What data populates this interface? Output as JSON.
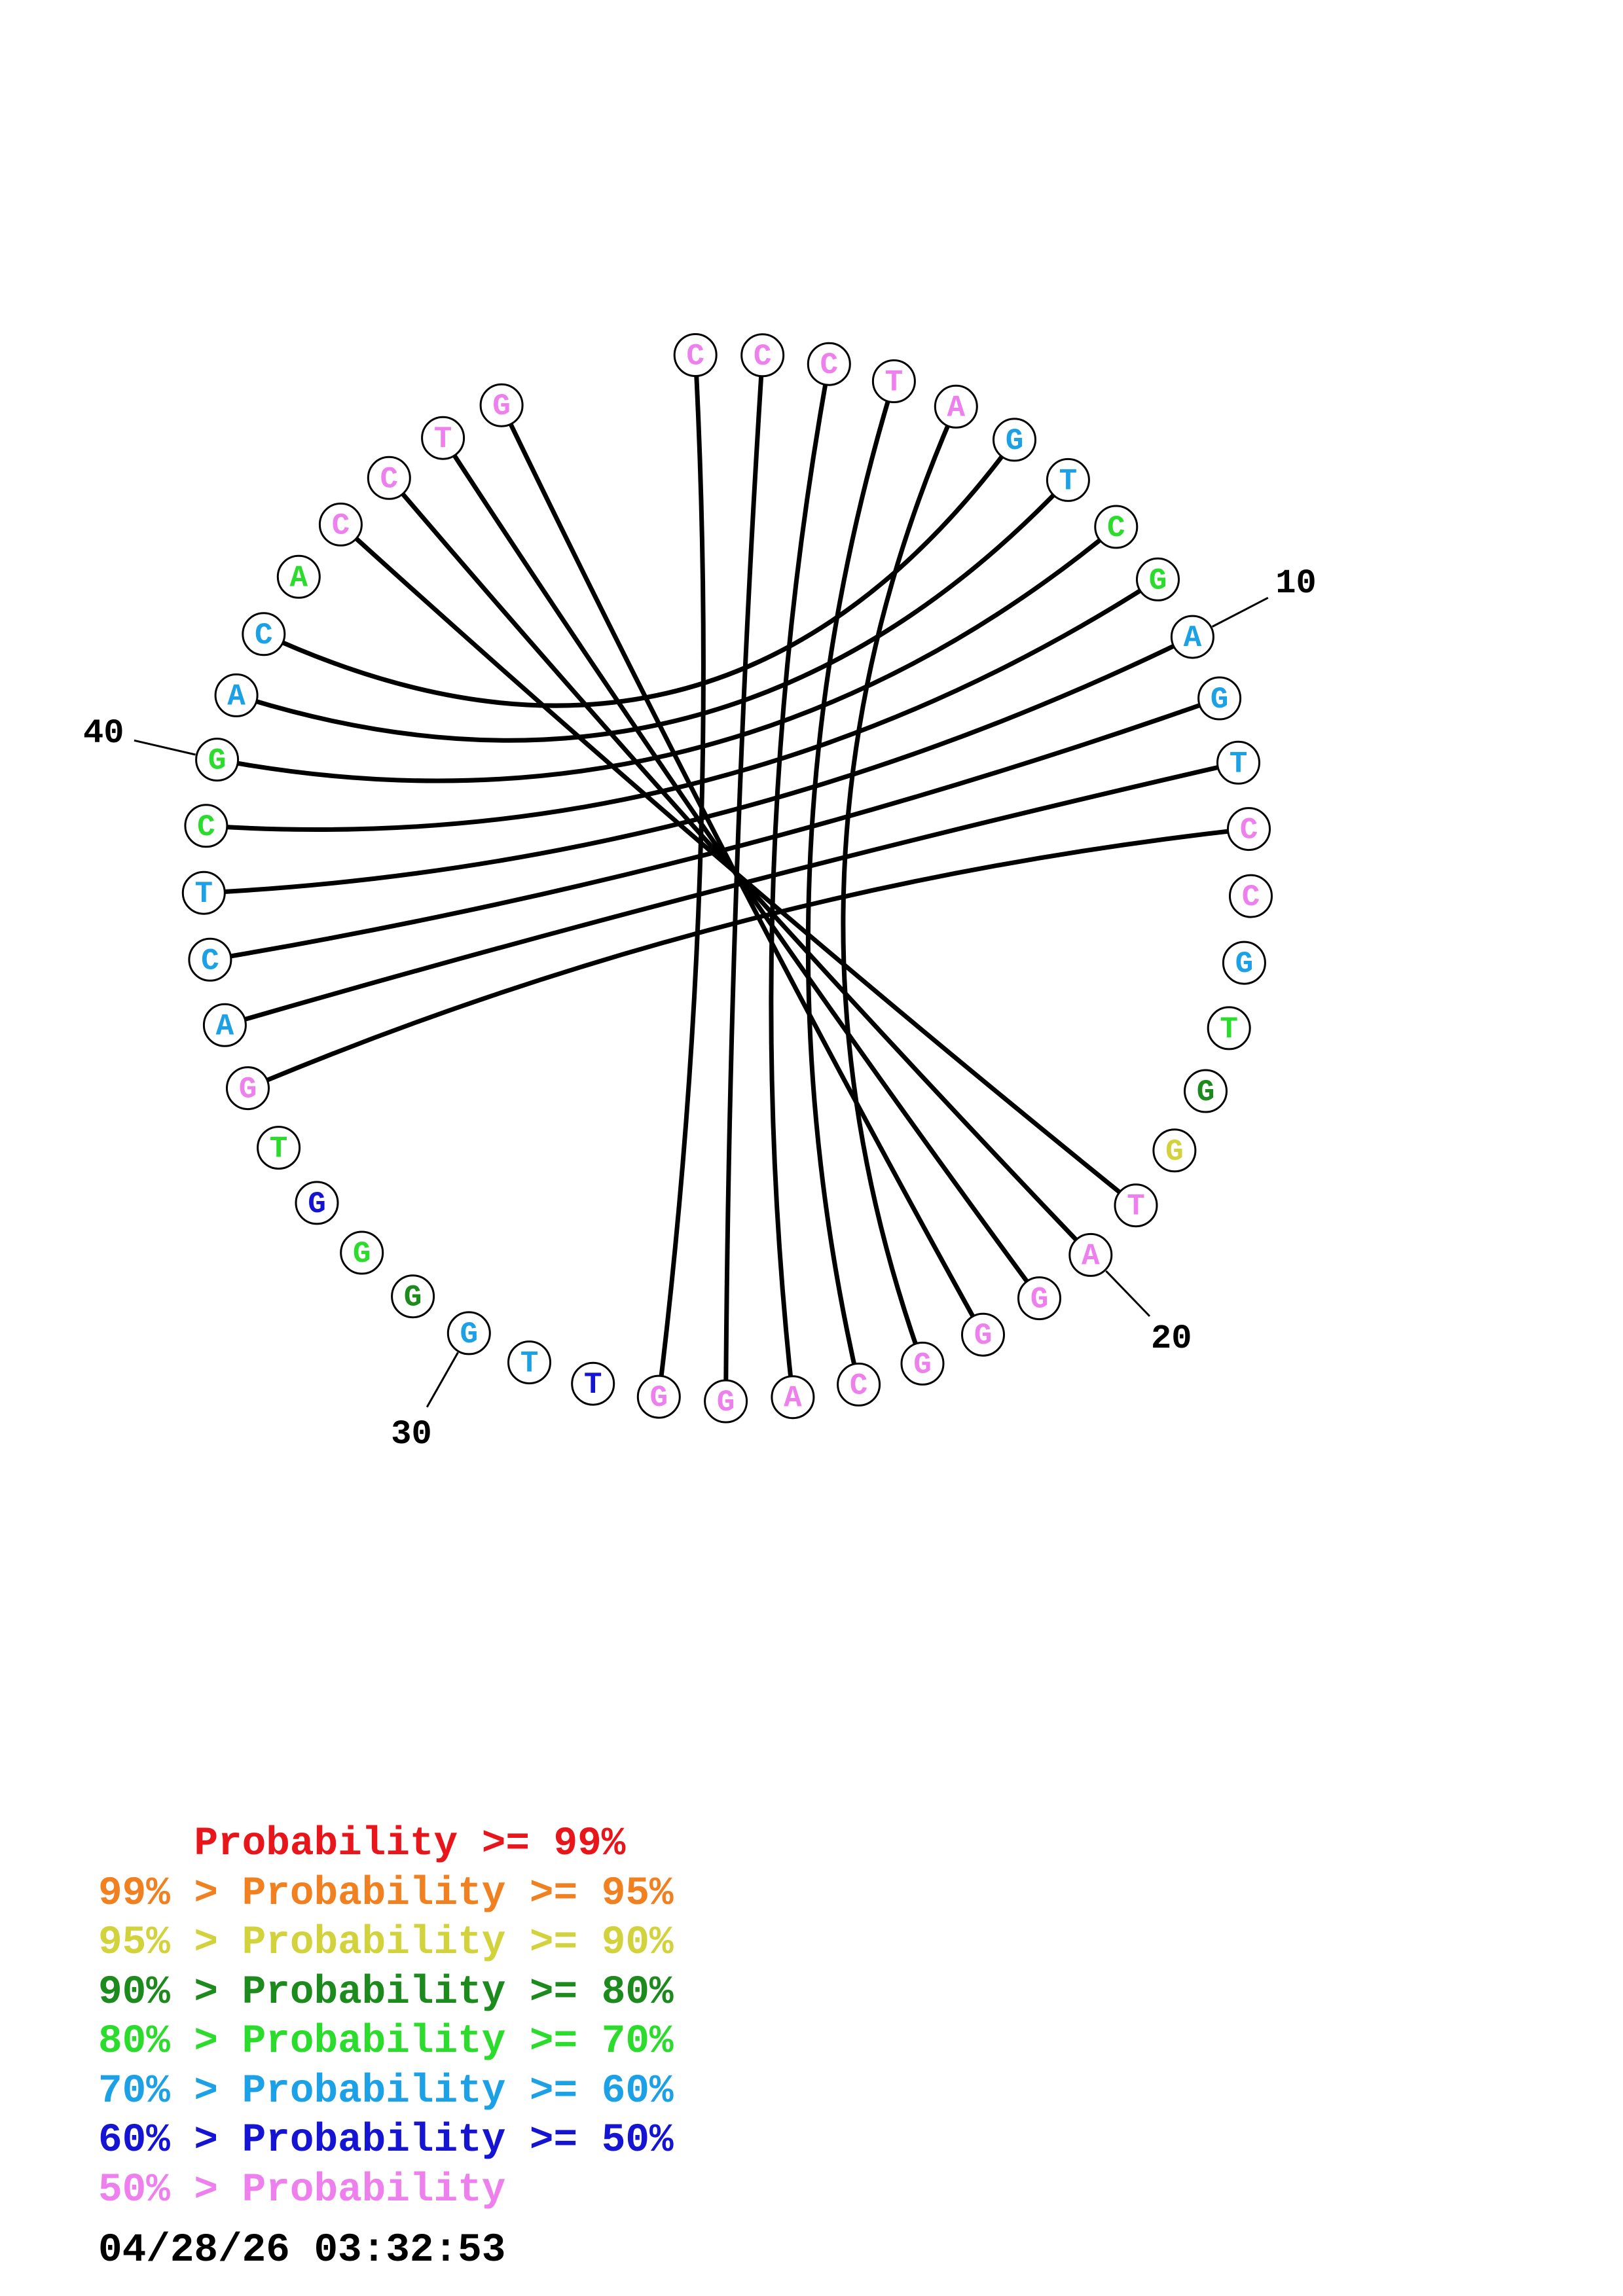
{
  "colors": {
    "p99": "#e8161b",
    "p95": "#f08020",
    "p90": "#d2d23c",
    "p80": "#1c8a1c",
    "p70": "#2cdc2c",
    "p60": "#1ca0e6",
    "p50": "#1414d2",
    "plow": "#ee80ee"
  },
  "sequence": [
    {
      "base": "C",
      "prob": "plow"
    },
    {
      "base": "C",
      "prob": "plow"
    },
    {
      "base": "C",
      "prob": "plow"
    },
    {
      "base": "T",
      "prob": "plow"
    },
    {
      "base": "A",
      "prob": "plow"
    },
    {
      "base": "G",
      "prob": "p60"
    },
    {
      "base": "T",
      "prob": "p60"
    },
    {
      "base": "C",
      "prob": "p70"
    },
    {
      "base": "G",
      "prob": "p70"
    },
    {
      "base": "A",
      "prob": "p60"
    },
    {
      "base": "G",
      "prob": "p60"
    },
    {
      "base": "T",
      "prob": "p60"
    },
    {
      "base": "C",
      "prob": "plow"
    },
    {
      "base": "C",
      "prob": "plow"
    },
    {
      "base": "G",
      "prob": "p60"
    },
    {
      "base": "T",
      "prob": "p70"
    },
    {
      "base": "G",
      "prob": "p80"
    },
    {
      "base": "G",
      "prob": "p90"
    },
    {
      "base": "T",
      "prob": "plow"
    },
    {
      "base": "A",
      "prob": "plow"
    },
    {
      "base": "G",
      "prob": "plow"
    },
    {
      "base": "G",
      "prob": "plow"
    },
    {
      "base": "G",
      "prob": "plow"
    },
    {
      "base": "C",
      "prob": "plow"
    },
    {
      "base": "A",
      "prob": "plow"
    },
    {
      "base": "G",
      "prob": "plow"
    },
    {
      "base": "G",
      "prob": "plow"
    },
    {
      "base": "T",
      "prob": "p50"
    },
    {
      "base": "T",
      "prob": "p60"
    },
    {
      "base": "G",
      "prob": "p60"
    },
    {
      "base": "G",
      "prob": "p80"
    },
    {
      "base": "G",
      "prob": "p70"
    },
    {
      "base": "G",
      "prob": "p50"
    },
    {
      "base": "T",
      "prob": "p70"
    },
    {
      "base": "G",
      "prob": "plow"
    },
    {
      "base": "A",
      "prob": "p60"
    },
    {
      "base": "C",
      "prob": "p60"
    },
    {
      "base": "T",
      "prob": "p60"
    },
    {
      "base": "C",
      "prob": "p70"
    },
    {
      "base": "G",
      "prob": "p70"
    },
    {
      "base": "A",
      "prob": "p60"
    },
    {
      "base": "C",
      "prob": "p60"
    },
    {
      "base": "A",
      "prob": "p70"
    },
    {
      "base": "C",
      "prob": "plow"
    },
    {
      "base": "C",
      "prob": "plow"
    },
    {
      "base": "T",
      "prob": "plow"
    },
    {
      "base": "G",
      "prob": "plow"
    }
  ],
  "pairs": [
    [
      1,
      27
    ],
    [
      2,
      26
    ],
    [
      3,
      25
    ],
    [
      4,
      24
    ],
    [
      5,
      23
    ],
    [
      6,
      42
    ],
    [
      7,
      41
    ],
    [
      8,
      40
    ],
    [
      9,
      39
    ],
    [
      10,
      38
    ],
    [
      11,
      37
    ],
    [
      12,
      36
    ],
    [
      13,
      35
    ],
    [
      19,
      44
    ],
    [
      20,
      45
    ],
    [
      21,
      46
    ],
    [
      22,
      47
    ]
  ],
  "position_labels": [
    {
      "pos": 10,
      "text": "10"
    },
    {
      "pos": 20,
      "text": "20"
    },
    {
      "pos": 30,
      "text": "30"
    },
    {
      "pos": 40,
      "text": "40"
    }
  ],
  "legend": [
    {
      "prefix": "    ",
      "text": "Probability >= 99%",
      "color": "#e8161b"
    },
    {
      "prefix": "99% > ",
      "text": "Probability >= 95%",
      "color": "#f08020"
    },
    {
      "prefix": "95% > ",
      "text": "Probability >= 90%",
      "color": "#d2d23c"
    },
    {
      "prefix": "90% > ",
      "text": "Probability >= 80%",
      "color": "#1c8a1c"
    },
    {
      "prefix": "80% > ",
      "text": "Probability >= 70%",
      "color": "#2cdc2c"
    },
    {
      "prefix": "70% > ",
      "text": "Probability >= 60%",
      "color": "#1ca0e6"
    },
    {
      "prefix": "60% > ",
      "text": "Probability >= 50%",
      "color": "#1414d2"
    },
    {
      "prefix": "50% > ",
      "text": "Probability",
      "color": "#ee80ee"
    }
  ],
  "timestamp": "04/28/26 03:32:53"
}
